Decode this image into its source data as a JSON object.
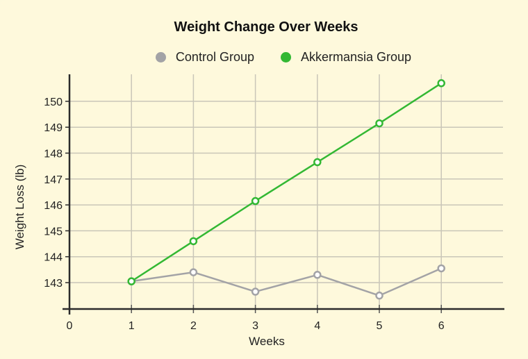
{
  "chart_data": {
    "type": "line",
    "title": "Weight Change Over Weeks",
    "xlabel": "Weeks",
    "ylabel": "Weight Loss (lb)",
    "x": [
      1,
      2,
      3,
      4,
      5,
      6
    ],
    "x_ticks": [
      0,
      1,
      2,
      3,
      4,
      5,
      6
    ],
    "y_ticks": [
      143,
      144,
      145,
      146,
      147,
      148,
      149,
      150
    ],
    "xlim": [
      0,
      6.9
    ],
    "ylim": [
      142,
      151.0
    ],
    "grid": true,
    "legend_position": "top",
    "series": [
      {
        "name": "Control Group",
        "color": "#a3a3a6",
        "values": [
          143.05,
          143.4,
          142.65,
          143.3,
          142.5,
          143.55
        ]
      },
      {
        "name": "Akkermansia Group",
        "color": "#33b833",
        "values": [
          143.05,
          144.6,
          146.15,
          147.65,
          149.15,
          150.7
        ]
      }
    ]
  },
  "colors": {
    "background": "#fef9dc",
    "grid": "#c9c6b8",
    "axis": "#2b2b2b"
  }
}
